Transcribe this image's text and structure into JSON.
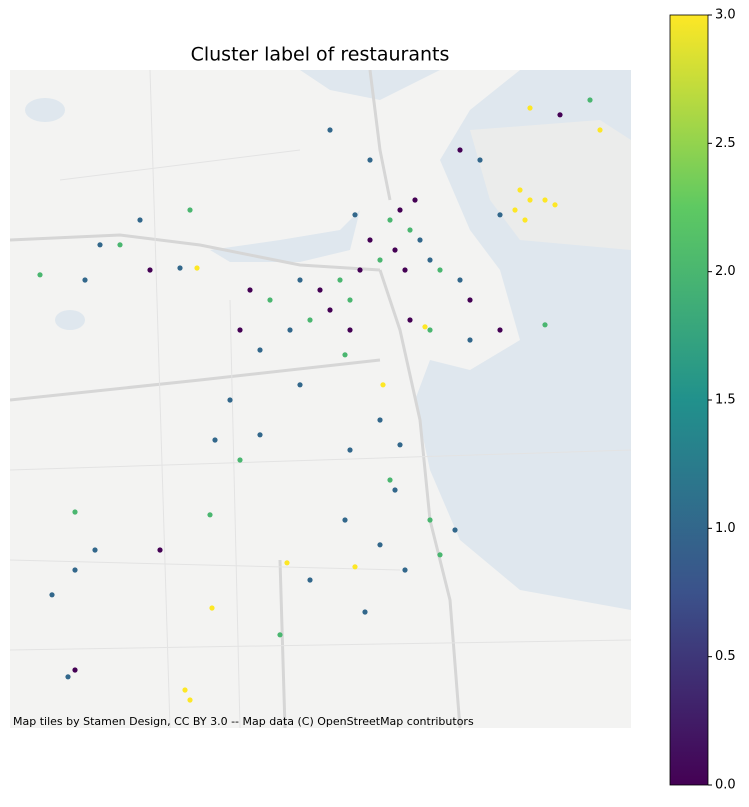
{
  "chart_data": {
    "type": "scatter",
    "title": "Cluster label of restaurants",
    "attribution": "Map tiles by Stamen Design, CC BY 3.0 -- Map data (C) OpenStreetMap contributors",
    "xlim": [
      -71.19,
      -71.0037
    ],
    "ylim": [
      42.23,
      42.3945
    ],
    "colormap": "viridis",
    "clim": [
      0,
      3
    ],
    "colorbar_ticks": [
      {
        "value": 0,
        "label": "0.0"
      },
      {
        "value": 0.5,
        "label": "0.5"
      },
      {
        "value": 1,
        "label": "1.0"
      },
      {
        "value": 1.5,
        "label": "1.5"
      },
      {
        "value": 2,
        "label": "2.0"
      },
      {
        "value": 2.5,
        "label": "2.5"
      },
      {
        "value": 3,
        "label": "3.0"
      }
    ],
    "x": [
      -71.037,
      -71.034,
      -71.0355,
      -71.0295,
      -71.0385,
      -71.0265,
      -71.1339,
      -71.0655,
      -71.0781,
      -71.1069,
      -71.0865,
      -71.1294,
      -71.1375,
      -71.136,
      -71.013,
      -71.034,
      -71.073,
      -71.07,
      -71.0745,
      -71.067,
      -71.079,
      -71.085,
      -71.091,
      -71.097,
      -71.103,
      -71.088,
      -71.082,
      -71.0715,
      -71.0685,
      -71.076,
      -71.0865,
      -71.064,
      -71.061,
      -71.055,
      -71.052,
      -71.094,
      -71.1,
      -71.106,
      -71.112,
      -71.118,
      -71.121,
      -71.115,
      -71.088,
      -71.0895,
      -71.07,
      -71.064,
      -71.052,
      -71.043,
      -71.0295,
      -71.055,
      -71.049,
      -71.043,
      -71.025,
      -71.016,
      -71.139,
      -71.148,
      -71.163,
      -71.181,
      -71.1675,
      -71.151,
      -71.136,
      -71.094,
      -71.082,
      -71.1285,
      -71.121,
      -71.13,
      -71.124,
      -71.115,
      -71.103,
      -71.088,
      -71.079,
      -71.073,
      -71.076,
      -71.0745,
      -71.0895,
      -71.079,
      -71.0715,
      -71.064,
      -71.0565,
      -71.061,
      -71.1,
      -71.109,
      -71.0835,
      -71.145,
      -71.1645,
      -71.1705,
      -71.1774,
      -71.1705,
      -71.1726,
      -71.1705,
      -71.157
    ],
    "y": [
      42.3645,
      42.362,
      42.357,
      42.362,
      42.3595,
      42.3608,
      42.345,
      42.3303,
      42.3158,
      42.2713,
      42.2703,
      42.26,
      42.2395,
      42.237,
      42.3795,
      42.385,
      42.3595,
      42.3545,
      42.3495,
      42.352,
      42.347,
      42.3445,
      42.342,
      42.3395,
      42.342,
      42.337,
      42.352,
      42.3445,
      42.362,
      42.357,
      42.3583,
      42.347,
      42.3445,
      42.342,
      42.337,
      42.3345,
      42.332,
      42.3295,
      42.337,
      42.3395,
      42.3295,
      42.3245,
      42.3295,
      42.3233,
      42.332,
      42.3295,
      42.327,
      42.3295,
      42.3308,
      42.3745,
      42.372,
      42.3583,
      42.3833,
      42.387,
      42.345,
      42.3445,
      42.3508,
      42.3433,
      42.342,
      42.357,
      42.3595,
      42.3795,
      42.372,
      42.302,
      42.297,
      42.2833,
      42.312,
      42.3033,
      42.3158,
      42.2995,
      42.307,
      42.3008,
      42.292,
      42.2895,
      42.282,
      42.2758,
      42.2695,
      42.282,
      42.2795,
      42.2733,
      42.267,
      42.2533,
      42.259,
      42.2745,
      42.2745,
      42.2695,
      42.2633,
      42.2445,
      42.2428,
      42.284,
      42.3508
    ],
    "values": [
      3,
      3,
      3,
      3,
      3,
      3,
      3,
      3,
      3,
      3,
      3,
      3,
      3,
      3,
      3,
      3,
      0,
      2,
      0,
      1,
      2,
      0,
      2,
      0,
      1,
      2,
      0,
      0,
      0,
      2,
      1,
      1,
      2,
      1,
      0,
      0,
      2,
      1,
      2,
      0,
      0,
      1,
      0,
      2,
      0,
      2,
      1,
      0,
      2,
      0,
      1,
      1,
      0,
      2,
      1,
      0,
      1,
      2,
      1,
      1,
      2,
      1,
      1,
      1,
      2,
      2,
      1,
      1,
      1,
      1,
      1,
      1,
      2,
      1,
      1,
      1,
      1,
      2,
      1,
      2,
      1,
      2,
      1,
      0,
      1,
      1,
      1,
      0,
      1,
      2,
      2
    ]
  }
}
